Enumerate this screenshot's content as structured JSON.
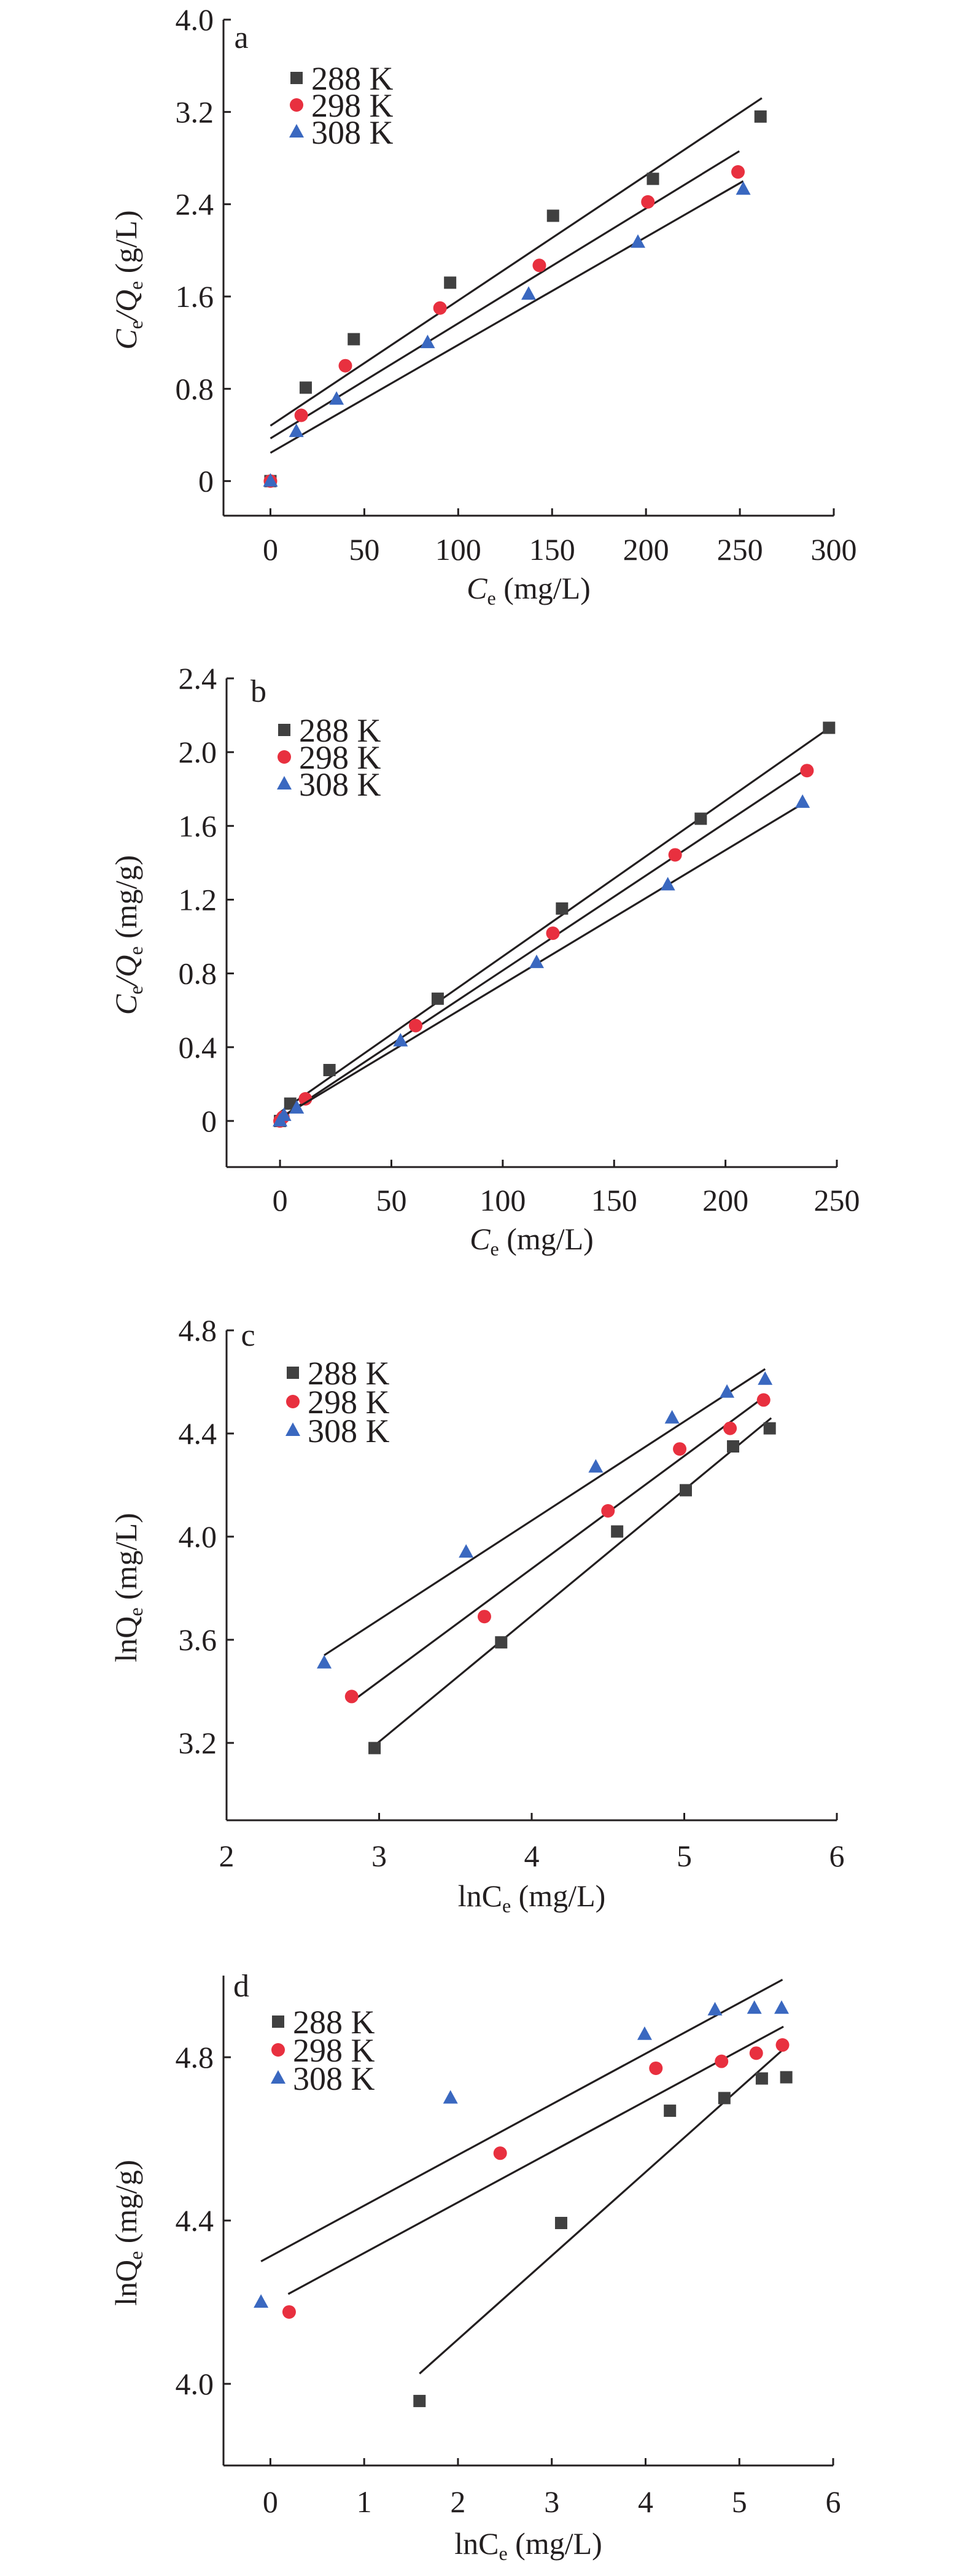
{
  "chart_data": [
    {
      "type": "scatter",
      "panel_label": "a",
      "xlabel": {
        "main": "C",
        "sub": "e",
        "unit": " (mg/L)"
      },
      "ylabel": {
        "main": "C",
        "sub": "e",
        "mid": "/Q",
        "sub2": "e",
        "unit": " (g/L)"
      },
      "xlim": [
        -25,
        300
      ],
      "ylim": [
        -0.3,
        4.0
      ],
      "xticks": [
        0,
        50,
        100,
        150,
        200,
        250,
        300
      ],
      "yticks": [
        0,
        0.8,
        1.6,
        2.4,
        3.2,
        4.0
      ],
      "ytick_labels": [
        "0",
        "0.8",
        "1.6",
        "2.4",
        "3.2",
        "4.0"
      ],
      "legend_position": "top-left",
      "series": [
        {
          "name": "288 K",
          "marker": "square",
          "color": "#404040",
          "x": [
            0,
            18.8,
            44.4,
            95.7,
            150.5,
            203.7,
            261
          ],
          "y": [
            0,
            0.81,
            1.23,
            1.72,
            2.3,
            2.62,
            3.16
          ],
          "fit": [
            [
              0,
              0.48
            ],
            [
              261.7,
              3.32
            ]
          ]
        },
        {
          "name": "298 K",
          "marker": "circle",
          "color": "#e8303f",
          "x": [
            0,
            16.4,
            39.9,
            90.3,
            143.2,
            201,
            249
          ],
          "y": [
            0,
            0.57,
            1.0,
            1.5,
            1.87,
            2.42,
            2.68
          ],
          "fit": [
            [
              0,
              0.37
            ],
            [
              249.7,
              2.86
            ]
          ]
        },
        {
          "name": "308 K",
          "marker": "triangle",
          "color": "#3a68c0",
          "x": [
            0,
            13.8,
            35.2,
            83.7,
            137.5,
            195.7,
            251.8
          ],
          "y": [
            0,
            0.43,
            0.71,
            1.2,
            1.62,
            2.07,
            2.53
          ],
          "fit": [
            [
              0,
              0.245
            ],
            [
              251.8,
              2.6
            ]
          ]
        }
      ]
    },
    {
      "type": "scatter",
      "panel_label": "b",
      "xlabel": {
        "main": "C",
        "sub": "e",
        "unit": " (mg/L)"
      },
      "ylabel": {
        "main": "C",
        "sub": "e",
        "mid": "/Q",
        "sub2": "e",
        "unit": " (mg/g)"
      },
      "xlim": [
        -24,
        250
      ],
      "ylim": [
        -0.25,
        2.4
      ],
      "xticks": [
        0,
        50,
        100,
        150,
        200,
        250
      ],
      "yticks": [
        0,
        0.4,
        0.8,
        1.2,
        1.6,
        2.0,
        2.4
      ],
      "ytick_labels": [
        "0",
        "0.4",
        "0.8",
        "1.2",
        "1.6",
        "2.0",
        "2.4"
      ],
      "legend_position": "top-left",
      "series": [
        {
          "name": "288 K",
          "marker": "square",
          "color": "#404040",
          "x": [
            0,
            4.6,
            22.2,
            70.8,
            126.6,
            188.9,
            246.5
          ],
          "y": [
            0,
            0.094,
            0.276,
            0.663,
            1.152,
            1.639,
            2.132
          ],
          "fit": [
            [
              0,
              0.047
            ],
            [
              246.5,
              2.13
            ]
          ]
        },
        {
          "name": "298 K",
          "marker": "circle",
          "color": "#e8303f",
          "x": [
            0,
            1.3,
            11.4,
            60.9,
            122.5,
            177.4,
            236.6
          ],
          "y": [
            0,
            0.02,
            0.12,
            0.517,
            1.018,
            1.443,
            1.9
          ],
          "fit": [
            [
              0,
              0.015
            ],
            [
              236.6,
              1.91
            ]
          ]
        },
        {
          "name": "308 K",
          "marker": "triangle",
          "color": "#3a68c0",
          "x": [
            0,
            1.8,
            7.5,
            54.1,
            115.2,
            174.1,
            234.6
          ],
          "y": [
            0,
            0.03,
            0.07,
            0.434,
            0.859,
            1.28,
            1.728
          ],
          "fit": [
            [
              0,
              0.015
            ],
            [
              234.6,
              1.72
            ]
          ]
        }
      ]
    },
    {
      "type": "scatter",
      "panel_label": "c",
      "xlabel": {
        "main": "lnC",
        "sub": "e",
        "unit": " (mg/L)"
      },
      "ylabel": {
        "main": "lnQ",
        "sub": "e",
        "mid": "",
        "sub2": "",
        "unit": " (mg/L)"
      },
      "xlim": [
        2,
        6
      ],
      "ylim": [
        2.9,
        4.8
      ],
      "xticks": [
        2,
        3,
        4,
        5,
        6
      ],
      "yticks": [
        3.2,
        3.6,
        4.0,
        4.4,
        4.8
      ],
      "ytick_labels": [
        "3.2",
        "3.6",
        "4.0",
        "4.4",
        "4.8"
      ],
      "legend_position": "top-left",
      "series": [
        {
          "name": "288 K",
          "marker": "square",
          "color": "#404040",
          "x": [
            2.97,
            3.8,
            4.56,
            5.01,
            5.32,
            5.56
          ],
          "y": [
            3.18,
            3.59,
            4.02,
            4.18,
            4.35,
            4.42
          ],
          "fit": [
            [
              2.97,
              3.19
            ],
            [
              5.57,
              4.46
            ]
          ]
        },
        {
          "name": "298 K",
          "marker": "circle",
          "color": "#e8303f",
          "x": [
            2.82,
            3.69,
            4.5,
            4.97,
            5.3,
            5.52
          ],
          "y": [
            3.38,
            3.69,
            4.1,
            4.34,
            4.42,
            4.53
          ],
          "fit": [
            [
              2.82,
              3.36
            ],
            [
              5.52,
              4.54
            ]
          ]
        },
        {
          "name": "308 K",
          "marker": "triangle",
          "color": "#3a68c0",
          "x": [
            2.64,
            3.57,
            4.42,
            4.92,
            5.28,
            5.53
          ],
          "y": [
            3.51,
            3.94,
            4.27,
            4.46,
            4.56,
            4.61
          ],
          "fit": [
            [
              2.64,
              3.54
            ],
            [
              5.53,
              4.65
            ]
          ]
        }
      ]
    },
    {
      "type": "scatter",
      "panel_label": "d",
      "xlabel": {
        "main": "lnC",
        "sub": "e",
        "unit": " (mg/L)"
      },
      "ylabel": {
        "main": "lnQ",
        "sub": "e",
        "mid": "",
        "sub2": "",
        "unit": " (mg/g)"
      },
      "xlim": [
        -0.5,
        6
      ],
      "ylim": [
        3.8,
        5.0
      ],
      "xticks": [
        0,
        1,
        2,
        3,
        4,
        5,
        6
      ],
      "yticks": [
        4.0,
        4.4,
        4.8
      ],
      "ytick_labels": [
        "4.0",
        "4.4",
        "4.8"
      ],
      "legend_position": "top-left",
      "series": [
        {
          "name": "288 K",
          "marker": "square",
          "color": "#404040",
          "x": [
            1.59,
            3.1,
            4.26,
            4.84,
            5.24,
            5.5
          ],
          "y": [
            3.958,
            4.394,
            4.669,
            4.7,
            4.748,
            4.751
          ],
          "fit": [
            [
              1.59,
              4.025
            ],
            [
              5.52,
              4.83
            ]
          ]
        },
        {
          "name": "298 K",
          "marker": "circle",
          "color": "#e8303f",
          "x": [
            0.2,
            2.45,
            4.11,
            4.81,
            5.18,
            5.46
          ],
          "y": [
            4.176,
            4.565,
            4.773,
            4.79,
            4.81,
            4.83
          ],
          "fit": [
            [
              0.19,
              4.22
            ],
            [
              5.47,
              4.875
            ]
          ]
        },
        {
          "name": "308 K",
          "marker": "triangle",
          "color": "#3a68c0",
          "x": [
            -0.1,
            1.92,
            3.99,
            4.74,
            5.16,
            5.45
          ],
          "y": [
            4.2,
            4.7,
            4.856,
            4.916,
            4.92,
            4.92
          ],
          "fit": [
            [
              -0.1,
              4.3
            ],
            [
              5.46,
              4.99
            ]
          ]
        }
      ]
    }
  ]
}
